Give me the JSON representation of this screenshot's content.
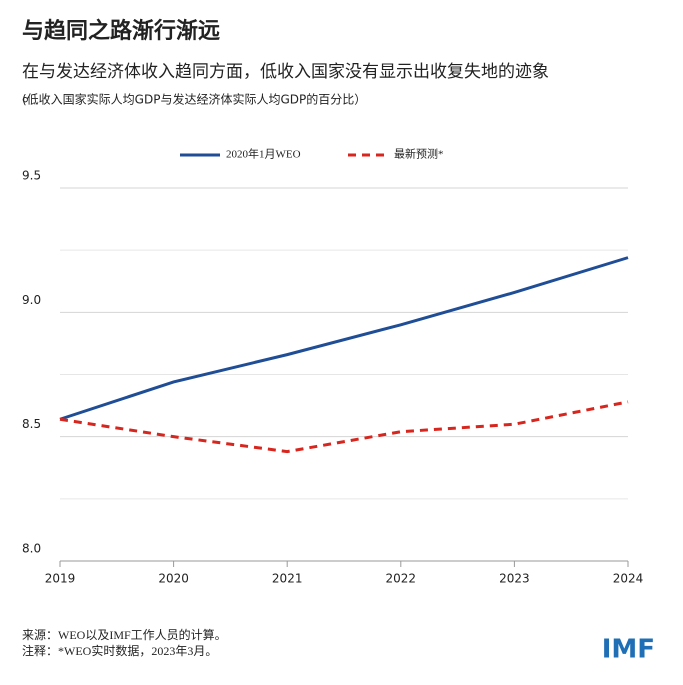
{
  "chart_data": {
    "type": "line",
    "title": "与趋同之路渐行渐远",
    "subtitle": "在与发达经济体收入趋同方面，低收入国家没有显示出收复失地的迹象。",
    "note": "(低收入国家实际人均GDP与发达经济体实际人均GDP的百分比）",
    "x": [
      2019,
      2020,
      2021,
      2022,
      2023,
      2024
    ],
    "xlim": [
      2019,
      2024
    ],
    "xticks": [
      2019,
      2020,
      2021,
      2022,
      2023,
      2024
    ],
    "ylim": [
      8,
      9.5
    ],
    "yticks": [
      {
        "value": 8,
        "label": "8.0"
      },
      {
        "value": 8.5,
        "label": "8.5"
      },
      {
        "value": 9,
        "label": "9.0"
      },
      9.5
    ],
    "minor_grid": [
      8.25,
      8.75,
      9.25
    ],
    "grid": true,
    "series": [
      {
        "name": "2020年1月WEO",
        "color": "#1f4e96",
        "dash": false,
        "values": [
          8.57,
          8.72,
          8.83,
          8.95,
          9.08,
          9.22
        ]
      },
      {
        "name": "最新预测*",
        "color": "#d7261e",
        "dash": true,
        "values": [
          8.57,
          8.5,
          8.44,
          8.52,
          8.55,
          8.64
        ]
      }
    ],
    "source": "来源：WEO以及IMF工作人员的计算。",
    "footnote": "注释：*WEO实时数据，2023年3月。",
    "logo": "IMF"
  }
}
